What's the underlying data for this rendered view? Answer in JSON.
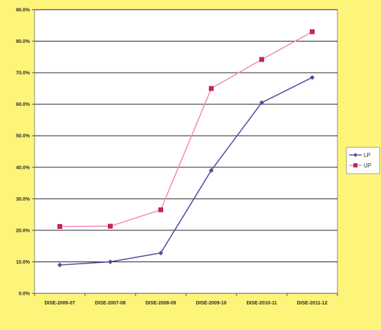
{
  "chart_data": {
    "type": "line",
    "categories": [
      "DISE-2006-07",
      "DISE-2007-08",
      "DISE-2008-09",
      "DISE-2009-10",
      "DISE-2010-11",
      "DISE-2011-12"
    ],
    "series": [
      {
        "name": "LP",
        "values": [
          9.0,
          10.0,
          12.8,
          39.0,
          60.5,
          68.5
        ],
        "color": "#5a4aa0",
        "marker": "diamond"
      },
      {
        "name": "UP",
        "values": [
          21.2,
          21.3,
          26.5,
          65.0,
          74.2,
          83.0
        ],
        "color": "#f08cc0",
        "marker_color": "#c4245f",
        "marker": "square"
      }
    ],
    "y_ticks": [
      0,
      10,
      20,
      30,
      40,
      50,
      60,
      70,
      80,
      90
    ],
    "y_tick_labels": [
      "0.0%",
      "10.0%",
      "20.0%",
      "30.0%",
      "40.0%",
      "50.0%",
      "60.0%",
      "70.0%",
      "80.0%",
      "90.0%"
    ],
    "ylim": [
      0,
      90
    ],
    "title": "",
    "xlabel": "",
    "ylabel": "",
    "grid": "horizontal",
    "legend_position": "right",
    "plot_background": "#ffffff",
    "page_background": "#fdf47a"
  }
}
